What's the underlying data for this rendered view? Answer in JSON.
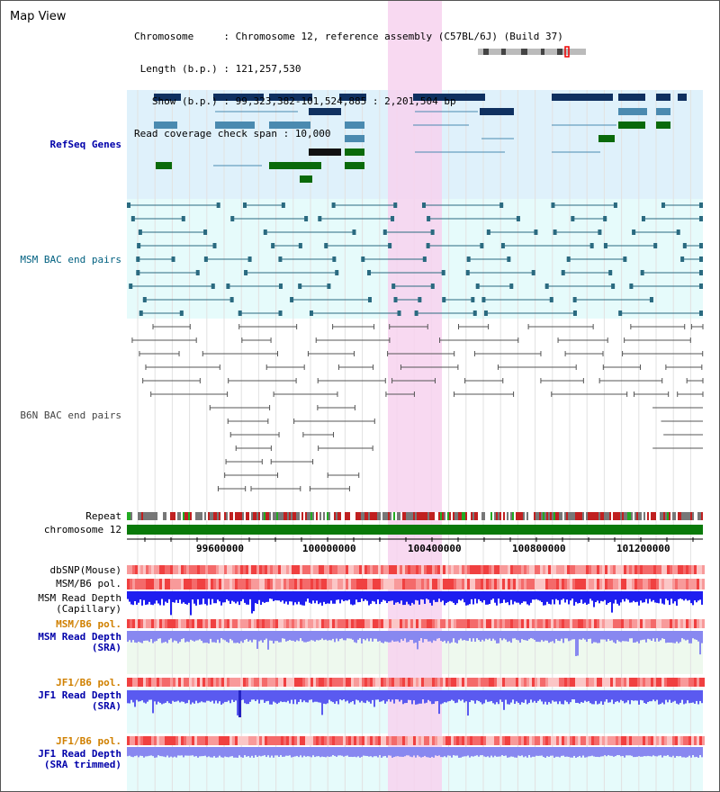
{
  "view_title": "Map View",
  "info": {
    "chromosome_key": "Chromosome     : ",
    "chromosome": "Chromosome 12, reference assembly (C57BL/6J) (Build 37)",
    "length_key": "Length (b.p.) : ",
    "length": "121,257,530",
    "show_key": "  Show (b.p.) : ",
    "show": "99,323,382-101,524,885 : 2,201,504 bp",
    "coverage_key": "Read coverage check span : ",
    "coverage": "10,000"
  },
  "tracks": {
    "refseq": "RefSeq Genes",
    "msm_bac": "MSM BAC end pairs",
    "b6n_bac": "B6N BAC end pairs",
    "repeat": "Repeat",
    "chromosome": "chromosome 12",
    "dbsnp": "dbSNP(Mouse)",
    "msm_b6_pol": "MSM/B6 pol.",
    "msm_depth_cap_1": "MSM Read Depth",
    "msm_depth_cap_2": "(Capillary)",
    "msm_b6_pol_sra": "MSM/B6 pol.",
    "msm_depth_sra_1": "MSM Read Depth",
    "msm_depth_sra_2": "(SRA)",
    "jf1_b6_pol": "JF1/B6 pol.",
    "jf1_depth_1": "JF1 Read Depth",
    "jf1_depth_2": "(SRA)",
    "jf1_b6_pol_trim": "JF1/B6 pol.",
    "jf1_trim_1": "JF1 Read Depth",
    "jf1_trim_2": "(SRA trimmed)"
  },
  "axis": {
    "ticks": [
      "99600000",
      "100000000",
      "100400000",
      "100800000",
      "101200000"
    ]
  },
  "colors": {
    "refseq_bg": "#dff1fb",
    "msm_bg": "#e6fbfb",
    "gene_dark": "#0f3060",
    "gene_mid": "#4a8ab0",
    "gene_green": "#0a6a0a",
    "msm_line": "#2a6a80",
    "b6n_line": "#555555",
    "highlight": "#f7d2ef",
    "depth_blue": "#1e1ef0",
    "depth_light": "#8888f0",
    "label_blue": "#0000aa",
    "label_teal": "#006080",
    "label_orange": "#d08000"
  }
}
